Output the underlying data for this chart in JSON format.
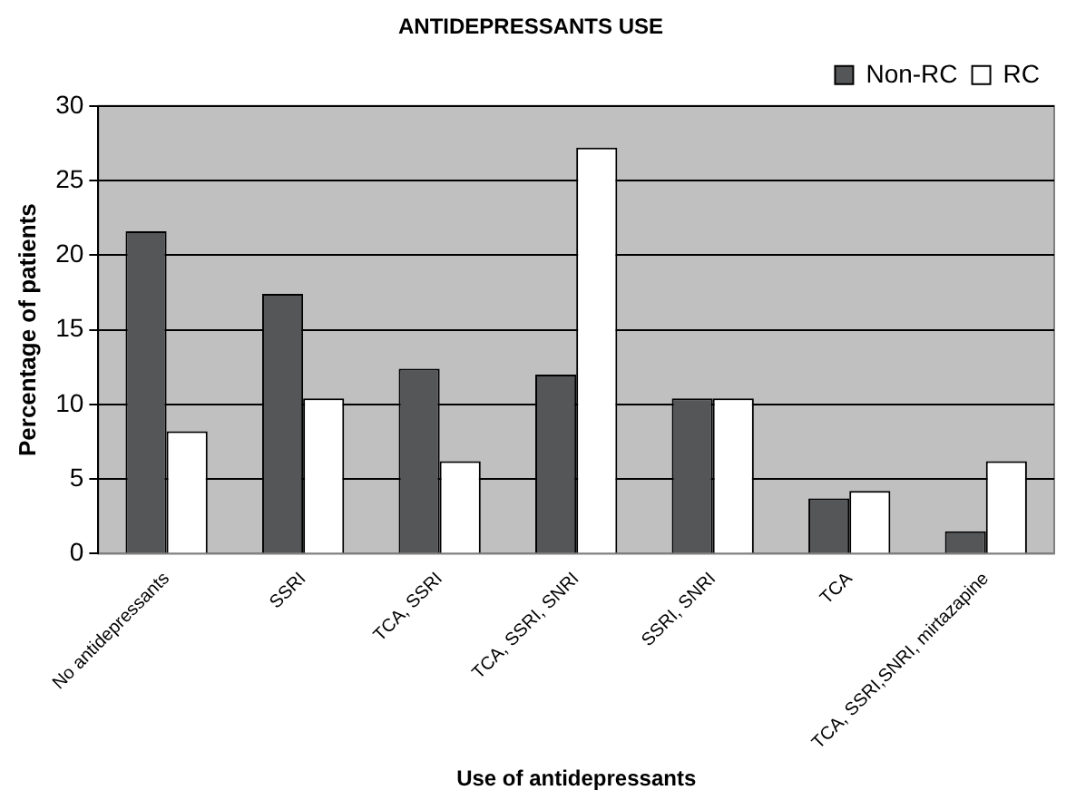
{
  "chart_data": {
    "type": "bar",
    "title": "ANTIDEPRESSANTS USE",
    "xlabel": "Use of antidepressants",
    "ylabel": "Percentage of patients",
    "categories": [
      "No antidepressants",
      "SSRI",
      "TCA, SSRI",
      "TCA, SSRI, SNRI",
      "SSRI, SNRI",
      "TCA",
      "TCA, SSRI,SNRI, mirtazapine"
    ],
    "series": [
      {
        "name": "Non-RC",
        "color": "#555658",
        "values": [
          21.6,
          17.4,
          12.4,
          12.0,
          10.4,
          3.7,
          1.5
        ]
      },
      {
        "name": "RC",
        "color": "#ffffff",
        "values": [
          8.2,
          10.4,
          6.2,
          27.2,
          10.4,
          4.2,
          6.2
        ]
      }
    ],
    "ylim": [
      0,
      30
    ],
    "yticks": [
      0,
      5,
      10,
      15,
      20,
      25,
      30
    ],
    "grid": "y",
    "legend": "top right"
  }
}
